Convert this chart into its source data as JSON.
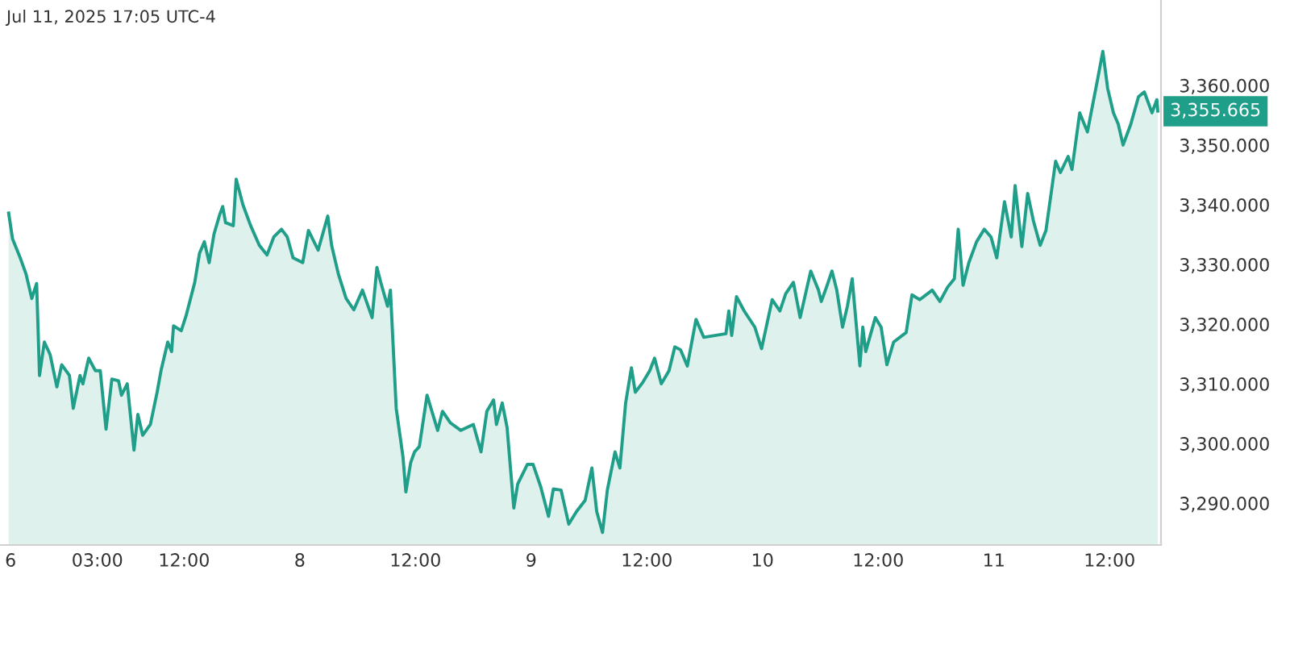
{
  "chart_data": {
    "type": "area",
    "annotations": [
      "Jul 11, 2025 17:05 UTC-4",
      {
        "text": "3,355.665",
        "x": "2025-07-11T17:00",
        "y": 3355.665
      }
    ],
    "xlim": [
      "2025-07-06T16:54",
      "2025-07-11T17:20"
    ],
    "ylim": [
      3283,
      3374.3
    ],
    "xticks": [
      {
        "value": "2025-07-06T18:00",
        "label": "6"
      },
      {
        "value": "2025-07-07T03:00",
        "label": "03:00"
      },
      {
        "value": "2025-07-07T12:00",
        "label": "12:00"
      },
      {
        "value": "2025-07-08T00:00",
        "label": "8"
      },
      {
        "value": "2025-07-08T12:00",
        "label": "12:00"
      },
      {
        "value": "2025-07-09T00:00",
        "label": "9"
      },
      {
        "value": "2025-07-09T12:00",
        "label": "12:00"
      },
      {
        "value": "2025-07-10T00:00",
        "label": "10"
      },
      {
        "value": "2025-07-10T12:00",
        "label": "12:00"
      },
      {
        "value": "2025-07-11T00:00",
        "label": "11"
      },
      {
        "value": "2025-07-11T12:00",
        "label": "12:00"
      }
    ],
    "yticks": [
      {
        "value": 3290,
        "label": "3,290.000"
      },
      {
        "value": 3300,
        "label": "3,300.000"
      },
      {
        "value": 3310,
        "label": "3,310.000"
      },
      {
        "value": 3320,
        "label": "3,320.000"
      },
      {
        "value": 3330,
        "label": "3,330.000"
      },
      {
        "value": 3340,
        "label": "3,340.000"
      },
      {
        "value": 3350,
        "label": "3,350.000"
      },
      {
        "value": 3360,
        "label": "3,360.000"
      }
    ],
    "grid": false,
    "legend": false,
    "series": [
      {
        "color": "#1f9e89",
        "x": [
          "2025-07-06T17:48",
          "2025-07-06T18:12",
          "2025-07-06T19:00",
          "2025-07-06T19:36",
          "2025-07-06T20:12",
          "2025-07-06T20:42",
          "2025-07-06T21:00",
          "2025-07-06T21:30",
          "2025-07-06T22:06",
          "2025-07-06T22:48",
          "2025-07-06T23:18",
          "2025-07-07T00:06",
          "2025-07-07T00:30",
          "2025-07-07T01:12",
          "2025-07-07T01:30",
          "2025-07-07T02:06",
          "2025-07-07T02:48",
          "2025-07-07T03:18",
          "2025-07-07T03:54",
          "2025-07-07T04:30",
          "2025-07-07T05:12",
          "2025-07-07T05:30",
          "2025-07-07T06:06",
          "2025-07-07T06:48",
          "2025-07-07T07:12",
          "2025-07-07T07:42",
          "2025-07-07T08:30",
          "2025-07-07T09:12",
          "2025-07-07T09:36",
          "2025-07-07T10:18",
          "2025-07-07T10:42",
          "2025-07-07T10:54",
          "2025-07-07T11:42",
          "2025-07-07T12:12",
          "2025-07-07T13:06",
          "2025-07-07T13:36",
          "2025-07-07T14:06",
          "2025-07-07T14:36",
          "2025-07-07T15:06",
          "2025-07-07T15:42",
          "2025-07-07T16:00",
          "2025-07-07T16:18",
          "2025-07-07T17:06",
          "2025-07-07T17:24",
          "2025-07-07T18:06",
          "2025-07-07T18:54",
          "2025-07-07T19:48",
          "2025-07-07T20:36",
          "2025-07-07T21:18",
          "2025-07-07T22:06",
          "2025-07-07T22:42",
          "2025-07-07T23:18",
          "2025-07-08T00:18",
          "2025-07-08T00:54",
          "2025-07-08T01:54",
          "2025-07-08T02:54",
          "2025-07-08T03:18",
          "2025-07-08T04:00",
          "2025-07-08T04:48",
          "2025-07-08T05:36",
          "2025-07-08T06:30",
          "2025-07-08T07:30",
          "2025-07-08T08:00",
          "2025-07-08T08:24",
          "2025-07-08T09:06",
          "2025-07-08T09:24",
          "2025-07-08T10:00",
          "2025-07-08T10:42",
          "2025-07-08T11:00",
          "2025-07-08T11:30",
          "2025-07-08T11:54",
          "2025-07-08T12:24",
          "2025-07-08T13:12",
          "2025-07-08T14:18",
          "2025-07-08T14:48",
          "2025-07-08T15:36",
          "2025-07-08T16:42",
          "2025-07-08T18:00",
          "2025-07-08T18:48",
          "2025-07-08T19:24",
          "2025-07-08T20:06",
          "2025-07-08T20:24",
          "2025-07-08T21:00",
          "2025-07-08T21:30",
          "2025-07-08T22:12",
          "2025-07-08T22:36",
          "2025-07-08T23:36",
          "2025-07-09T00:12",
          "2025-07-09T01:00",
          "2025-07-09T01:48",
          "2025-07-09T02:18",
          "2025-07-09T03:06",
          "2025-07-09T03:54",
          "2025-07-09T04:42",
          "2025-07-09T05:36",
          "2025-07-09T06:18",
          "2025-07-09T06:48",
          "2025-07-09T07:24",
          "2025-07-09T07:54",
          "2025-07-09T08:42",
          "2025-07-09T09:12",
          "2025-07-09T09:48",
          "2025-07-09T10:24",
          "2025-07-09T10:48",
          "2025-07-09T11:36",
          "2025-07-09T12:18",
          "2025-07-09T12:48",
          "2025-07-09T13:30",
          "2025-07-09T14:18",
          "2025-07-09T14:54",
          "2025-07-09T15:30",
          "2025-07-09T16:12",
          "2025-07-09T17:06",
          "2025-07-09T17:54",
          "2025-07-09T20:12",
          "2025-07-09T20:30",
          "2025-07-09T20:48",
          "2025-07-09T21:18",
          "2025-07-09T22:06",
          "2025-07-09T23:12",
          "2025-07-09T23:54",
          "2025-07-10T01:00",
          "2025-07-10T01:48",
          "2025-07-10T02:24",
          "2025-07-10T03:12",
          "2025-07-10T03:54",
          "2025-07-10T05:00",
          "2025-07-10T05:48",
          "2025-07-10T06:06",
          "2025-07-10T06:42",
          "2025-07-10T07:12",
          "2025-07-10T07:42",
          "2025-07-10T08:18",
          "2025-07-10T08:48",
          "2025-07-10T09:18",
          "2025-07-10T10:06",
          "2025-07-10T10:24",
          "2025-07-10T10:42",
          "2025-07-10T11:42",
          "2025-07-10T12:18",
          "2025-07-10T12:54",
          "2025-07-10T13:36",
          "2025-07-10T14:54",
          "2025-07-10T15:30",
          "2025-07-10T16:18",
          "2025-07-10T17:36",
          "2025-07-10T18:24",
          "2025-07-10T19:12",
          "2025-07-10T19:54",
          "2025-07-10T20:18",
          "2025-07-10T20:48",
          "2025-07-10T21:24",
          "2025-07-10T22:12",
          "2025-07-10T23:00",
          "2025-07-10T23:42",
          "2025-07-11T00:18",
          "2025-07-11T01:06",
          "2025-07-11T01:48",
          "2025-07-11T02:12",
          "2025-07-11T02:54",
          "2025-07-11T03:30",
          "2025-07-11T04:06",
          "2025-07-11T04:48",
          "2025-07-11T05:24",
          "2025-07-11T06:24",
          "2025-07-11T06:54",
          "2025-07-11T07:42",
          "2025-07-11T08:06",
          "2025-07-11T08:54",
          "2025-07-11T09:42",
          "2025-07-11T10:48",
          "2025-07-11T11:18",
          "2025-07-11T11:48",
          "2025-07-11T12:24",
          "2025-07-11T12:54",
          "2025-07-11T13:24",
          "2025-07-11T14:12",
          "2025-07-11T15:00",
          "2025-07-11T15:36",
          "2025-07-11T16:24",
          "2025-07-11T16:54",
          "2025-07-11T17:00"
        ],
        "values": [
          3338.6,
          3334.3,
          3331.1,
          3328.4,
          3324.3,
          3326.8,
          3311.4,
          3317,
          3314.9,
          3309.5,
          3313.2,
          3311.4,
          3305.9,
          3311.4,
          3310,
          3314.3,
          3312.2,
          3312.2,
          3302.4,
          3310.8,
          3310.5,
          3308.1,
          3310,
          3298.9,
          3304.9,
          3301.4,
          3303.2,
          3308.6,
          3312.2,
          3317,
          3315.4,
          3319.7,
          3318.9,
          3321.4,
          3327,
          3331.9,
          3333.8,
          3330.3,
          3335.1,
          3338.4,
          3339.7,
          3337,
          3336.5,
          3344.3,
          3340,
          3336.5,
          3333.2,
          3331.6,
          3334.6,
          3335.9,
          3334.6,
          3331.1,
          3330.3,
          3335.7,
          3332.4,
          3338.1,
          3333.2,
          3328.4,
          3324.3,
          3322.4,
          3325.7,
          3321.1,
          3329.5,
          3327,
          3323,
          3325.7,
          3305.9,
          3297.8,
          3291.9,
          3296.8,
          3298.6,
          3299.5,
          3308.1,
          3302.2,
          3305.4,
          3303.5,
          3302.2,
          3303.2,
          3298.6,
          3305.4,
          3307.3,
          3303.2,
          3306.8,
          3302.7,
          3289.2,
          3293.2,
          3296.5,
          3296.5,
          3292.7,
          3287.8,
          3292.4,
          3292.2,
          3286.5,
          3288.6,
          3290.5,
          3295.9,
          3288.6,
          3285.1,
          3292.2,
          3298.6,
          3295.9,
          3306.8,
          3312.7,
          3308.6,
          3310.3,
          3312.2,
          3314.3,
          3310,
          3312.2,
          3316.2,
          3315.7,
          3313,
          3320.8,
          3317.8,
          3318.4,
          3322.2,
          3318.1,
          3324.6,
          3322.2,
          3319.5,
          3315.9,
          3324.1,
          3322.2,
          3325.1,
          3327,
          3321.1,
          3328.9,
          3325.7,
          3323.8,
          3326.5,
          3328.9,
          3325.7,
          3319.5,
          3323,
          3327.6,
          3313,
          3319.5,
          3315.4,
          3321.1,
          3319.5,
          3313.2,
          3317,
          3318.6,
          3324.9,
          3324.1,
          3325.7,
          3323.8,
          3326.2,
          3327.6,
          3335.9,
          3326.5,
          3330.3,
          3333.8,
          3335.9,
          3334.6,
          3331.1,
          3340.5,
          3334.6,
          3343.2,
          3333,
          3341.9,
          3337.3,
          3333.2,
          3335.7,
          3347.3,
          3345.4,
          3348.1,
          3345.9,
          3355.4,
          3352.2,
          3361.4,
          3365.7,
          3359.5,
          3355.4,
          3353.5,
          3350,
          3353.5,
          3358.1,
          3358.9,
          3355.4,
          3357.6,
          3355.7
        ]
      }
    ]
  }
}
